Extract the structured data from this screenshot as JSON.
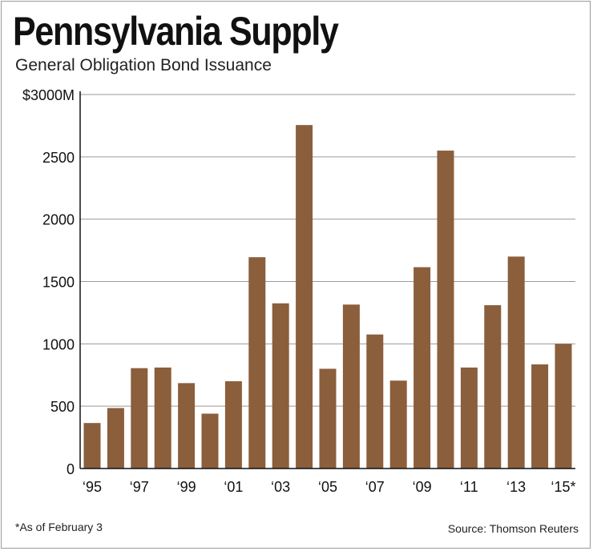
{
  "title": "Pennsylvania Supply",
  "subtitle": "General Obligation Bond Issuance",
  "footnote": "*As of February 3",
  "source": "Source: Thomson Reuters",
  "colors": {
    "bar": "#8b5e3c",
    "grid": "#9a9a9a",
    "axis": "#111111"
  },
  "chart_data": {
    "type": "bar",
    "title": "Pennsylvania Supply",
    "subtitle": "General Obligation Bond Issuance",
    "xlabel": "",
    "ylabel": "",
    "ylim": [
      0,
      3000
    ],
    "yticks": [
      {
        "value": 0,
        "label": "0"
      },
      {
        "value": 500,
        "label": "500"
      },
      {
        "value": 1000,
        "label": "1000"
      },
      {
        "value": 1500,
        "label": "1500"
      },
      {
        "value": 2000,
        "label": "2000"
      },
      {
        "value": 2500,
        "label": "2500"
      },
      {
        "value": 3000,
        "label": "$3000M"
      }
    ],
    "categories": [
      "1995",
      "1996",
      "1997",
      "1998",
      "1999",
      "2000",
      "2001",
      "2002",
      "2003",
      "2004",
      "2005",
      "2006",
      "2007",
      "2008",
      "2009",
      "2010",
      "2011",
      "2012",
      "2013",
      "2014",
      "2015"
    ],
    "xtick_labels": [
      {
        "category": "1995",
        "label": "‘95"
      },
      {
        "category": "1997",
        "label": "‘97"
      },
      {
        "category": "1999",
        "label": "‘99"
      },
      {
        "category": "2001",
        "label": "‘01"
      },
      {
        "category": "2003",
        "label": "‘03"
      },
      {
        "category": "2005",
        "label": "‘05"
      },
      {
        "category": "2007",
        "label": "‘07"
      },
      {
        "category": "2009",
        "label": "‘09"
      },
      {
        "category": "2011",
        "label": "‘11"
      },
      {
        "category": "2013",
        "label": "‘13"
      },
      {
        "category": "2015",
        "label": "‘15*"
      }
    ],
    "values": [
      365,
      485,
      805,
      810,
      685,
      440,
      700,
      1695,
      1325,
      2755,
      800,
      1315,
      1075,
      705,
      1615,
      2550,
      810,
      1310,
      1700,
      835,
      1000
    ],
    "grid": true
  }
}
